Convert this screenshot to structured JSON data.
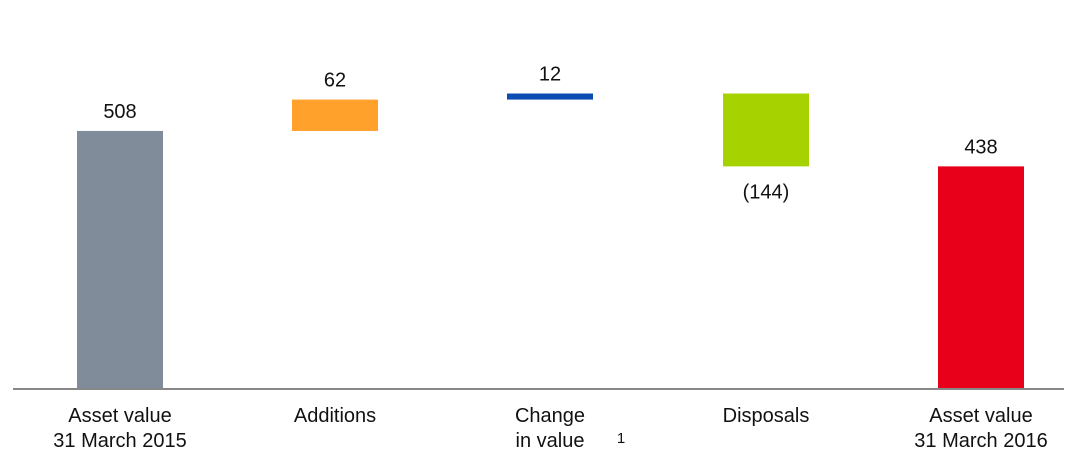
{
  "chart_data": {
    "type": "bar",
    "subtype": "waterfall",
    "categories": [
      [
        "Asset value",
        "31 March 2015"
      ],
      [
        "Additions"
      ],
      [
        "Change",
        "in value"
      ],
      [
        "Disposals"
      ],
      [
        "Asset value",
        "31 March 2016"
      ]
    ],
    "category_footnote": {
      "index": 2,
      "text": "1"
    },
    "steps": [
      {
        "kind": "total",
        "value": 508,
        "label": "508",
        "color": "#808c99"
      },
      {
        "kind": "delta",
        "value": 62,
        "label": "62",
        "color": "#ffa12b"
      },
      {
        "kind": "delta",
        "value": 12,
        "label": "12",
        "color": "#0c4db3"
      },
      {
        "kind": "delta",
        "value": -144,
        "label": "(144)",
        "color": "#a6d300"
      },
      {
        "kind": "total",
        "value": 438,
        "label": "438",
        "color": "#e8001b"
      }
    ],
    "ylim": [
      0,
      630
    ],
    "axis_color": "#888888"
  }
}
